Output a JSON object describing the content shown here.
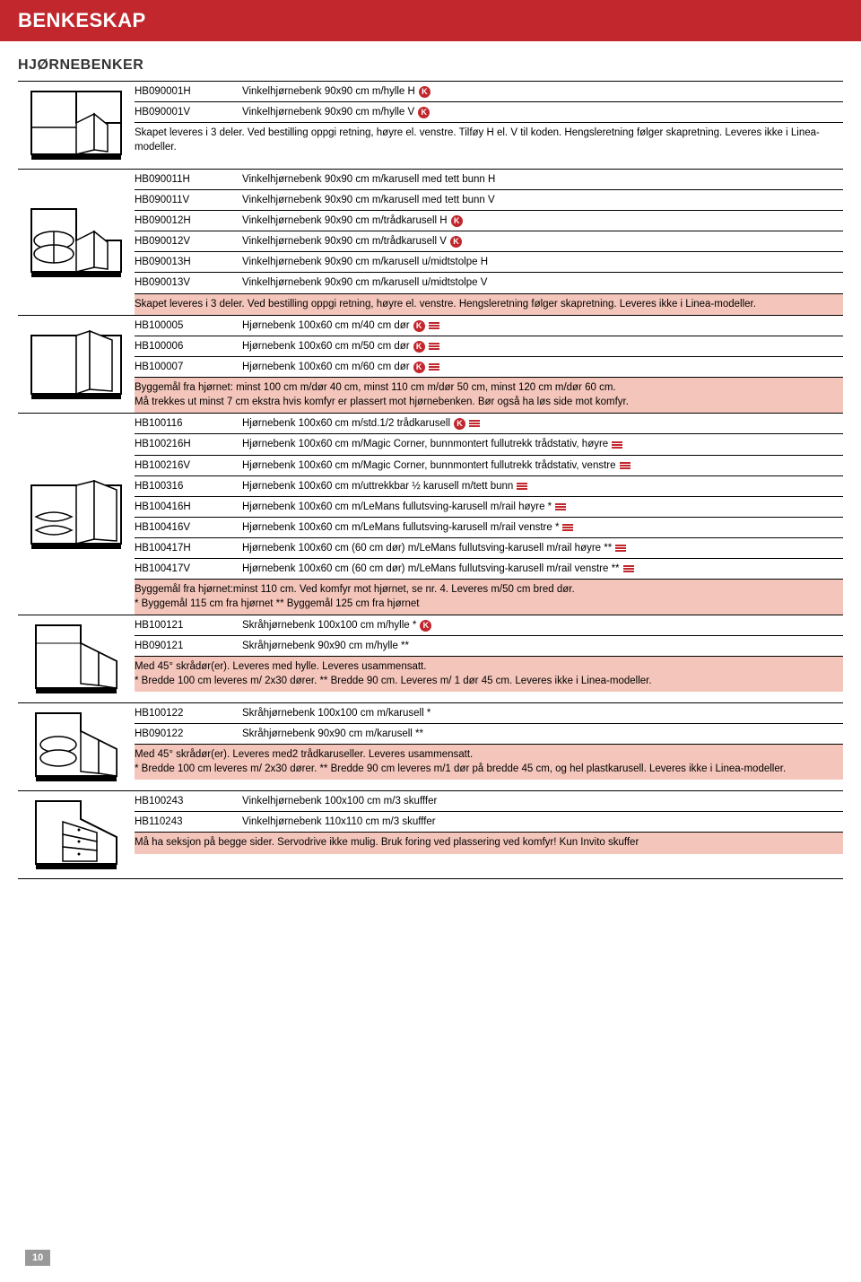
{
  "colors": {
    "header_bg": "#c1272d",
    "pink_note": "#f4c6bb",
    "rule": "#000000",
    "text": "#000000"
  },
  "header": "BENKESKAP",
  "subheader": "HJØRNEBENKER",
  "page_number": "10",
  "sections": [
    {
      "svg": "cabinet1",
      "rows": [
        {
          "code": "HB090001H",
          "desc": "Vinkelhjørnebenk 90x90 cm m/hylle H",
          "k": true
        },
        {
          "code": "HB090001V",
          "desc": "Vinkelhjørnebenk 90x90 cm m/hylle V",
          "k": true
        }
      ],
      "note": "Skapet leveres i 3 deler. Ved bestilling oppgi retning, høyre el. venstre. Tilføy H el. V til koden. Hengsleretning følger skapretning. Leveres ikke i Linea-modeller.",
      "note_pink": false
    },
    {
      "svg": "cabinet2",
      "rows": [
        {
          "code": "HB090011H",
          "desc": "Vinkelhjørnebenk 90x90 cm m/karusell med tett bunn H"
        },
        {
          "code": "HB090011V",
          "desc": "Vinkelhjørnebenk 90x90 cm m/karusell med tett bunn V"
        },
        {
          "code": "HB090012H",
          "desc": "Vinkelhjørnebenk 90x90 cm m/trådkarusell H",
          "k": true
        },
        {
          "code": "HB090012V",
          "desc": "Vinkelhjørnebenk 90x90 cm m/trådkarusell V",
          "k": true
        },
        {
          "code": "HB090013H",
          "desc": "Vinkelhjørnebenk 90x90 cm m/karusell u/midtstolpe H"
        },
        {
          "code": "HB090013V",
          "desc": "Vinkelhjørnebenk 90x90 cm m/karusell u/midtstolpe V"
        }
      ],
      "note": "Skapet leveres i 3 deler. Ved bestilling oppgi retning, høyre el. venstre. Hengsleretning følger skapretning. Leveres ikke i Linea-modeller.",
      "note_pink": true
    },
    {
      "svg": "cabinet3",
      "rows": [
        {
          "code": "HB100005",
          "desc": "Hjørnebenk 100x60 cm m/40 cm dør",
          "k": true,
          "bars": true
        },
        {
          "code": "HB100006",
          "desc": "Hjørnebenk 100x60 cm m/50 cm dør",
          "k": true,
          "bars": true
        },
        {
          "code": "HB100007",
          "desc": "Hjørnebenk 100x60 cm m/60 cm dør",
          "k": true,
          "bars": true
        }
      ],
      "note": "Byggemål fra hjørnet: minst 100 cm m/dør 40 cm, minst 110 cm m/dør 50 cm, minst 120 cm m/dør 60 cm.\nMå trekkes ut minst 7 cm ekstra hvis komfyr er plassert mot hjørnebenken. Bør også ha løs side mot komfyr.",
      "note_pink": true
    },
    {
      "svg": "cabinet4",
      "rows": [
        {
          "code": "HB100116",
          "desc": "Hjørnebenk 100x60 cm m/std.1/2 trådkarusell",
          "k": true,
          "bars": true
        },
        {
          "code": "HB100216H",
          "desc": "Hjørnebenk 100x60 cm m/Magic Corner, bunnmontert fullutrekk trådstativ, høyre",
          "bars": true
        },
        {
          "code": "HB100216V",
          "desc": "Hjørnebenk 100x60 cm m/Magic Corner, bunnmontert fullutrekk trådstativ, venstre",
          "bars": true
        },
        {
          "code": "HB100316",
          "desc": "Hjørnebenk 100x60 cm m/uttrekkbar ½ karusell m/tett bunn",
          "bars": true
        },
        {
          "code": "HB100416H",
          "desc": "Hjørnebenk 100x60 cm m/LeMans fullutsving-karusell m/rail høyre *",
          "bars": true
        },
        {
          "code": "HB100416V",
          "desc": "Hjørnebenk 100x60 cm m/LeMans fullutsving-karusell m/rail venstre *",
          "bars": true
        },
        {
          "code": "HB100417H",
          "desc": "Hjørnebenk 100x60 cm (60 cm dør) m/LeMans fullutsving-karusell m/rail høyre **",
          "bars": true
        },
        {
          "code": "HB100417V",
          "desc": "Hjørnebenk 100x60 cm (60 cm dør) m/LeMans fullutsving-karusell m/rail venstre **",
          "bars": true
        }
      ],
      "note": "Byggemål fra hjørnet:minst 110 cm. Ved komfyr mot hjørnet, se nr. 4. Leveres m/50 cm bred dør.\n* Byggemål 115 cm fra hjørnet ** Byggemål 125 cm fra hjørnet",
      "note_pink": true
    },
    {
      "svg": "cabinet5",
      "rows": [
        {
          "code": "HB100121",
          "desc": "Skråhjørnebenk 100x100 cm m/hylle *",
          "k": true
        },
        {
          "code": "HB090121",
          "desc": "Skråhjørnebenk 90x90 cm m/hylle **"
        }
      ],
      "note": "Med 45° skrådør(er). Leveres med hylle. Leveres usammensatt.\n* Bredde 100 cm leveres m/ 2x30 dører. ** Bredde 90 cm. Leveres m/ 1 dør 45 cm. Leveres ikke i Linea-modeller.",
      "note_pink": true
    },
    {
      "svg": "cabinet6",
      "rows": [
        {
          "code": "HB100122",
          "desc": "Skråhjørnebenk 100x100 cm m/karusell *"
        },
        {
          "code": "HB090122",
          "desc": "Skråhjørnebenk 90x90 cm m/karusell **"
        }
      ],
      "note": "Med 45° skrådør(er). Leveres med2 trådkaruseller. Leveres usammensatt.\n* Bredde 100 cm leveres m/ 2x30 dører. ** Bredde 90 cm leveres m/1 dør på bredde 45 cm, og hel plastkarusell. Leveres ikke i Linea-modeller.",
      "note_pink": true
    },
    {
      "svg": "cabinet7",
      "rows": [
        {
          "code": "HB100243",
          "desc": "Vinkelhjørnebenk 100x100 cm m/3 skufffer"
        },
        {
          "code": "HB110243",
          "desc": "Vinkelhjørnebenk 110x110 cm m/3 skufffer"
        }
      ],
      "note": "Må ha seksjon på begge sider. Servodrive ikke mulig. Bruk foring ved plassering ved komfyr! Kun Invito skuffer",
      "note_pink": true
    }
  ]
}
